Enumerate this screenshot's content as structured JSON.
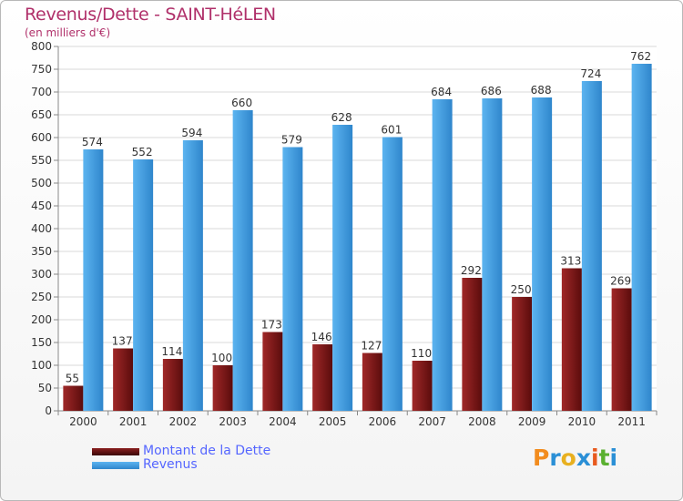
{
  "chart_data": {
    "type": "bar",
    "title": "Revenus/Dette - SAINT-HéLEN",
    "subtitle": "(en milliers d'€)",
    "categories": [
      "2000",
      "2001",
      "2002",
      "2003",
      "2004",
      "2005",
      "2006",
      "2007",
      "2008",
      "2009",
      "2010",
      "2011"
    ],
    "series": [
      {
        "name": "Montant de la Dette",
        "color": "#7a1a1a",
        "values": [
          55,
          137,
          114,
          100,
          173,
          146,
          127,
          110,
          292,
          250,
          313,
          269
        ]
      },
      {
        "name": "Revenus",
        "color": "#4ea6e8",
        "values": [
          574,
          552,
          594,
          660,
          579,
          628,
          601,
          684,
          686,
          688,
          724,
          762
        ]
      }
    ],
    "ylim": [
      0,
      800
    ],
    "ytick_step": 50,
    "grid": true,
    "legend_position": "bottom-left"
  },
  "logo": {
    "letters": [
      "P",
      "r",
      "o",
      "x",
      "i",
      "t",
      "i"
    ],
    "colors": [
      "#f28c1e",
      "#2a8fd6",
      "#e8b020",
      "#2a8fd6",
      "#e85a1e",
      "#5ab030",
      "#2a8fd6"
    ]
  }
}
